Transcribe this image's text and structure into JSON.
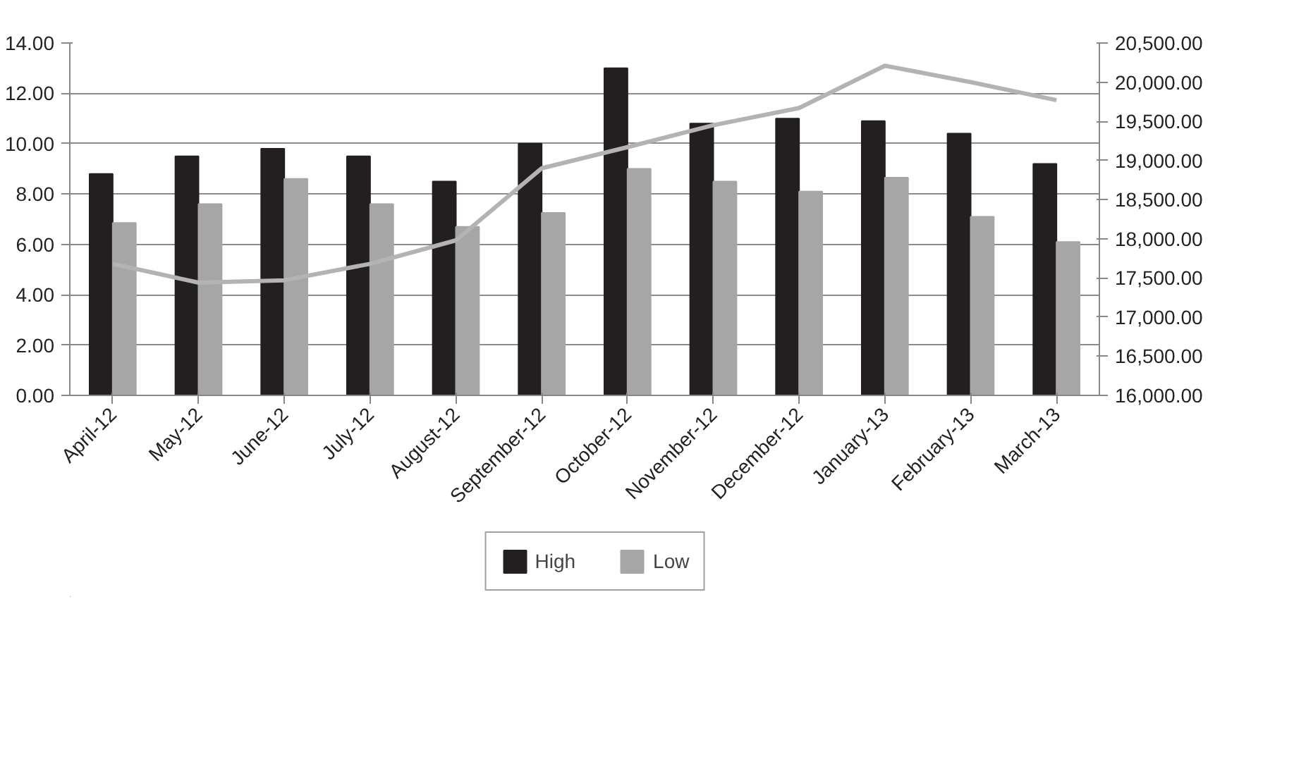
{
  "chart_data": {
    "type": "bar",
    "categories": [
      "April-12",
      "May-12",
      "June-12",
      "July-12",
      "August-12",
      "September-12",
      "October-12",
      "November-12",
      "December-12",
      "January-13",
      "February-13",
      "March-13"
    ],
    "series": [
      {
        "name": "High",
        "color": "#231f20",
        "values": [
          8.8,
          9.5,
          9.8,
          9.5,
          8.5,
          10.0,
          13.0,
          10.8,
          11.0,
          10.9,
          10.4,
          9.2
        ]
      },
      {
        "name": "Low",
        "color": "#a6a6a6",
        "values": [
          6.85,
          7.6,
          8.6,
          7.6,
          6.7,
          7.25,
          9.0,
          8.5,
          8.1,
          8.65,
          7.1,
          6.1
        ]
      },
      {
        "type": "line",
        "axis": "y2",
        "color": "#b3b3b3",
        "values": [
          17680,
          17440,
          17470,
          17680,
          17980,
          18900,
          19170,
          19450,
          19670,
          20210,
          20000,
          19770
        ]
      }
    ],
    "ylim": [
      0,
      14
    ],
    "yticks": [
      {
        "value": 0,
        "label": "0.00"
      },
      {
        "value": 2,
        "label": "2.00"
      },
      {
        "value": 4,
        "label": "4.00"
      },
      {
        "value": 6,
        "label": "6.00"
      },
      {
        "value": 8,
        "label": "8.00"
      },
      {
        "value": 10,
        "label": "10.00"
      },
      {
        "value": 12,
        "label": "12.00"
      },
      {
        "value": 14,
        "label": "14.00"
      }
    ],
    "y2lim": [
      16000,
      20500
    ],
    "y2ticks": [
      {
        "value": 16000,
        "label": "16,000.00"
      },
      {
        "value": 16500,
        "label": "16,500.00"
      },
      {
        "value": 17000,
        "label": "17,000.00"
      },
      {
        "value": 17500,
        "label": "17,500.00"
      },
      {
        "value": 18000,
        "label": "18,000.00"
      },
      {
        "value": 18500,
        "label": "18,500.00"
      },
      {
        "value": 19000,
        "label": "19,000.00"
      },
      {
        "value": 19500,
        "label": "19,500.00"
      },
      {
        "value": 20000,
        "label": "20,000.00"
      },
      {
        "value": 20500,
        "label": "20,500.00"
      }
    ],
    "grid": "y",
    "legend": "bottom",
    "line_style": "solid",
    "marker": "none"
  }
}
